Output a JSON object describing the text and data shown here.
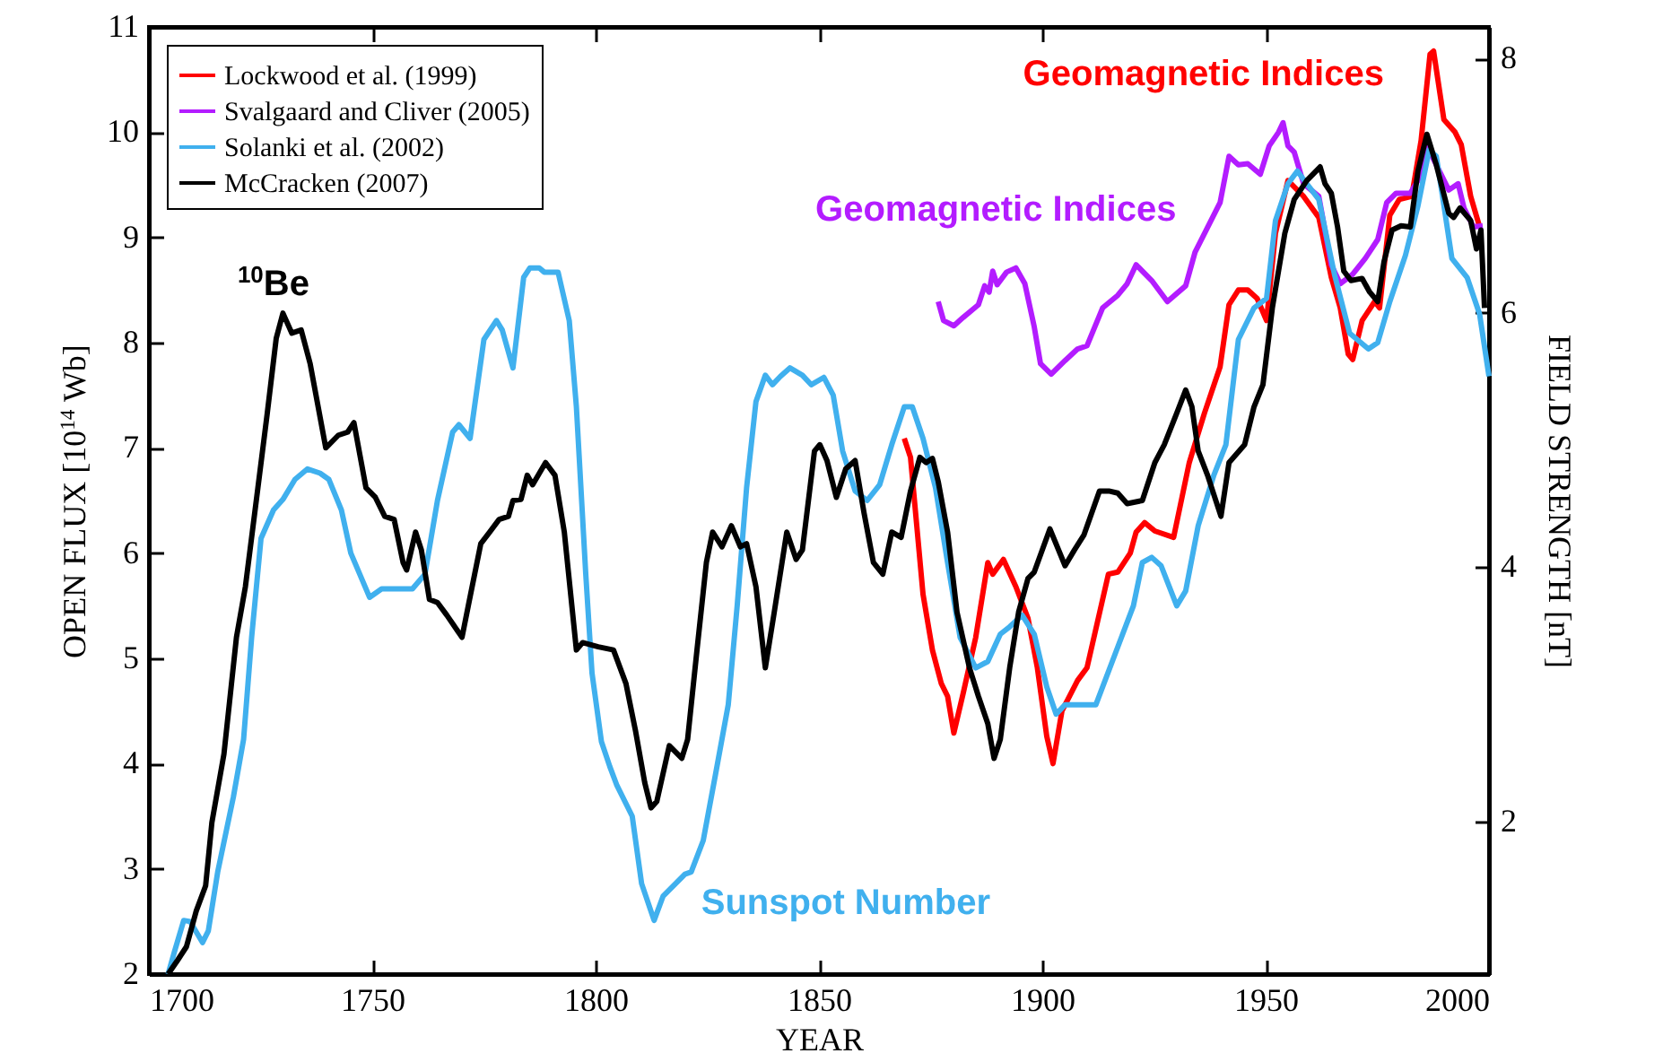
{
  "chart_data": {
    "type": "line",
    "xlabel": "YEAR",
    "ylabel": "OPEN FLUX [10$^{14}$ Wb]",
    "y2label": "FIELD STRENGTH [nT]",
    "xlim": [
      1700,
      2000
    ],
    "xticks": [
      1700,
      1750,
      1800,
      1850,
      1900,
      1950,
      2000
    ],
    "ylim": [
      2,
      11
    ],
    "yticks": [
      2,
      3,
      4,
      5,
      6,
      7,
      8,
      9,
      10,
      11
    ],
    "y2lim": [
      0.8,
      8.25
    ],
    "y2ticks": [
      2,
      4,
      6,
      8
    ],
    "legend": "top left",
    "line_style": "solid",
    "series": [
      {
        "name": "Lockwood et al. (1999)",
        "color": "#ff0000",
        "x": [
          1869.1,
          1870.5,
          1871.9,
          1873.3,
          1875.4,
          1877.4,
          1878.8,
          1880.2,
          1882.3,
          1885.1,
          1887.8,
          1888.9,
          1891.3,
          1894.1,
          1896.8,
          1898.9,
          1901.0,
          1902.4,
          1904.4,
          1907.9,
          1910.0,
          1914.8,
          1916.9,
          1919.7,
          1921.0,
          1922.9,
          1925.2,
          1929.4,
          1932.9,
          1936.3,
          1939.8,
          1941.8,
          1943.9,
          1946.0,
          1948.1,
          1950.2,
          1952.2,
          1955.0,
          1958.5,
          1961.9,
          1964.7,
          1966.7,
          1968.5,
          1969.5,
          1971.6,
          1974.4,
          1975.5,
          1977.8,
          1979.9,
          1982.7,
          1984.8,
          1986.8,
          1987.6,
          1989.9,
          1992.4,
          1993.8,
          1995.9,
          1997.9
        ],
        "values": [
          7.09,
          6.91,
          6.26,
          5.61,
          5.08,
          4.76,
          4.64,
          4.29,
          4.67,
          5.2,
          5.91,
          5.8,
          5.94,
          5.68,
          5.38,
          4.91,
          4.26,
          4.0,
          4.5,
          4.79,
          4.91,
          5.8,
          5.82,
          6.0,
          6.2,
          6.29,
          6.21,
          6.15,
          6.86,
          7.33,
          7.77,
          8.36,
          8.5,
          8.5,
          8.42,
          8.21,
          9.04,
          9.54,
          9.39,
          9.19,
          8.62,
          8.33,
          7.89,
          7.84,
          8.21,
          8.39,
          8.33,
          9.21,
          9.36,
          9.39,
          9.92,
          10.74,
          10.77,
          10.12,
          10.0,
          9.88,
          9.39,
          9.1
        ]
      },
      {
        "name": "Svalgaard and Cliver (2005)",
        "color": "#b31cff",
        "x": [
          1876.7,
          1877.9,
          1880.2,
          1882.3,
          1885.7,
          1887.1,
          1888.1,
          1888.9,
          1889.9,
          1892.0,
          1894.1,
          1896.1,
          1898.2,
          1899.6,
          1902.0,
          1905.1,
          1907.9,
          1910.0,
          1913.5,
          1916.9,
          1919.0,
          1921.0,
          1924.5,
          1928.0,
          1932.1,
          1934.2,
          1939.8,
          1941.8,
          1943.9,
          1946.0,
          1948.8,
          1950.8,
          1952.9,
          1953.9,
          1955.0,
          1956.4,
          1958.5,
          1961.9,
          1964.7,
          1966.7,
          1969.5,
          1972.3,
          1975.1,
          1977.1,
          1979.2,
          1982.4,
          1984.1,
          1986.1,
          1988.2,
          1991.0,
          1993.1,
          1994.4,
          1996.5,
          1998.6
        ],
        "values": [
          8.39,
          8.21,
          8.16,
          8.24,
          8.36,
          8.54,
          8.48,
          8.68,
          8.55,
          8.67,
          8.71,
          8.56,
          8.15,
          7.8,
          7.7,
          7.83,
          7.94,
          7.97,
          8.33,
          8.45,
          8.56,
          8.74,
          8.59,
          8.39,
          8.54,
          8.86,
          9.33,
          9.77,
          9.69,
          9.7,
          9.6,
          9.87,
          10.0,
          10.09,
          9.87,
          9.81,
          9.51,
          9.39,
          8.74,
          8.56,
          8.65,
          8.8,
          8.98,
          9.33,
          9.42,
          9.42,
          9.54,
          9.87,
          9.69,
          9.45,
          9.51,
          9.28,
          9.1,
          9.11
        ]
      },
      {
        "name": "Solanki et al. (2002)",
        "color": "#40b0ee",
        "x": [
          1704.3,
          1705.7,
          1707.8,
          1709.2,
          1710.6,
          1712.0,
          1713.3,
          1715.4,
          1718.9,
          1721.2,
          1723.0,
          1725.1,
          1727.9,
          1730.0,
          1732.7,
          1735.5,
          1738.3,
          1740.3,
          1743.1,
          1745.2,
          1749.4,
          1752.1,
          1759.0,
          1761.8,
          1764.6,
          1768.0,
          1769.4,
          1771.9,
          1775.0,
          1777.8,
          1779.1,
          1781.5,
          1783.9,
          1785.3,
          1787.4,
          1788.5,
          1791.6,
          1794.1,
          1795.7,
          1797.8,
          1799.2,
          1801.3,
          1803.2,
          1804.7,
          1808.2,
          1810.3,
          1813.1,
          1815.1,
          1820.0,
          1821.4,
          1824.1,
          1826.9,
          1829.7,
          1831.7,
          1833.8,
          1835.9,
          1838.0,
          1839.6,
          1841.4,
          1843.5,
          1846.3,
          1848.3,
          1851.1,
          1853.2,
          1855.3,
          1858.1,
          1860.8,
          1863.6,
          1866.3,
          1869.1,
          1870.9,
          1873.3,
          1876.1,
          1878.8,
          1881.6,
          1885.1,
          1887.8,
          1890.6,
          1892.7,
          1895.5,
          1898.2,
          1901.0,
          1903.1,
          1905.1,
          1912.0,
          1916.2,
          1920.4,
          1922.4,
          1924.5,
          1926.6,
          1930.1,
          1932.1,
          1934.9,
          1938.4,
          1941.1,
          1943.9,
          1947.4,
          1950.2,
          1952.2,
          1955.0,
          1957.1,
          1959.2,
          1961.9,
          1965.4,
          1968.8,
          1973.0,
          1975.1,
          1977.8,
          1981.3,
          1984.1,
          1986.6,
          1988.2,
          1989.6,
          1991.7,
          1995.1,
          1997.9,
          2000.0
        ],
        "values": [
          2.0,
          2.21,
          2.51,
          2.5,
          2.4,
          2.3,
          2.41,
          2.97,
          3.68,
          4.23,
          5.2,
          6.14,
          6.41,
          6.51,
          6.7,
          6.8,
          6.76,
          6.7,
          6.41,
          6.0,
          5.58,
          5.66,
          5.66,
          5.8,
          6.5,
          7.15,
          7.22,
          7.09,
          8.03,
          8.21,
          8.12,
          7.76,
          8.62,
          8.71,
          8.71,
          8.67,
          8.67,
          8.21,
          7.39,
          5.8,
          4.86,
          4.21,
          3.97,
          3.8,
          3.5,
          2.86,
          2.51,
          2.74,
          2.95,
          2.97,
          3.27,
          3.91,
          4.56,
          5.5,
          6.62,
          7.44,
          7.69,
          7.6,
          7.68,
          7.76,
          7.69,
          7.6,
          7.67,
          7.5,
          6.97,
          6.59,
          6.5,
          6.65,
          7.03,
          7.39,
          7.39,
          7.09,
          6.62,
          5.91,
          5.2,
          4.91,
          4.97,
          5.23,
          5.3,
          5.41,
          5.23,
          4.73,
          4.47,
          4.56,
          4.56,
          5.03,
          5.5,
          5.91,
          5.96,
          5.88,
          5.5,
          5.64,
          6.26,
          6.74,
          7.03,
          8.03,
          8.33,
          8.42,
          9.16,
          9.51,
          9.63,
          9.51,
          9.36,
          8.65,
          8.09,
          7.94,
          8.0,
          8.39,
          8.83,
          9.3,
          9.83,
          9.77,
          9.39,
          8.8,
          8.62,
          8.27,
          7.68
        ]
      },
      {
        "name": "McCracken (2007)",
        "color": "#000000",
        "x": [
          1704.3,
          1706.4,
          1708.4,
          1710.6,
          1712.7,
          1714.1,
          1716.8,
          1719.6,
          1721.6,
          1724.4,
          1726.5,
          1728.5,
          1730.0,
          1732.0,
          1734.1,
          1736.1,
          1739.6,
          1742.4,
          1744.5,
          1745.9,
          1748.6,
          1750.7,
          1752.8,
          1754.9,
          1756.9,
          1757.7,
          1759.7,
          1761.0,
          1762.8,
          1764.6,
          1766.7,
          1770.1,
          1771.5,
          1774.3,
          1776.3,
          1778.4,
          1780.5,
          1781.5,
          1783.3,
          1784.7,
          1785.9,
          1788.8,
          1790.9,
          1793.0,
          1795.7,
          1797.1,
          1800.6,
          1804.0,
          1806.8,
          1808.9,
          1811.0,
          1812.4,
          1813.7,
          1816.5,
          1819.3,
          1820.6,
          1822.7,
          1824.8,
          1826.2,
          1828.3,
          1830.4,
          1832.4,
          1833.8,
          1835.9,
          1838.0,
          1840.0,
          1842.8,
          1844.9,
          1846.3,
          1849.0,
          1850.2,
          1851.8,
          1853.9,
          1856.0,
          1858.1,
          1860.1,
          1862.2,
          1864.3,
          1866.3,
          1868.4,
          1870.5,
          1872.6,
          1874.0,
          1875.4,
          1876.7,
          1878.8,
          1880.9,
          1883.7,
          1885.7,
          1887.8,
          1889.2,
          1890.6,
          1892.7,
          1894.7,
          1896.8,
          1898.2,
          1901.7,
          1905.1,
          1907.2,
          1909.3,
          1912.8,
          1914.9,
          1916.9,
          1919.0,
          1922.4,
          1925.2,
          1927.3,
          1930.1,
          1932.1,
          1933.5,
          1934.9,
          1937.0,
          1940.0,
          1941.8,
          1945.3,
          1947.4,
          1949.4,
          1951.5,
          1954.3,
          1956.4,
          1959.2,
          1962.2,
          1963.3,
          1964.7,
          1966.1,
          1967.5,
          1969.1,
          1971.6,
          1973.3,
          1975.1,
          1976.5,
          1978.3,
          1980.3,
          1982.4,
          1984.1,
          1986.1,
          1988.2,
          1991.0,
          1992.1,
          1993.5,
          1995.9,
          1997.2,
          1998.2,
          1999.0
        ],
        "values": [
          2.0,
          2.13,
          2.26,
          2.6,
          2.84,
          3.44,
          4.09,
          5.2,
          5.68,
          6.62,
          7.33,
          8.04,
          8.28,
          8.09,
          8.12,
          7.8,
          7.0,
          7.12,
          7.15,
          7.24,
          6.62,
          6.53,
          6.35,
          6.32,
          5.91,
          5.84,
          6.2,
          6.03,
          5.56,
          5.53,
          5.41,
          5.2,
          5.5,
          6.09,
          6.2,
          6.32,
          6.35,
          6.5,
          6.51,
          6.74,
          6.65,
          6.86,
          6.74,
          6.2,
          5.08,
          5.15,
          5.11,
          5.08,
          4.76,
          4.32,
          3.82,
          3.58,
          3.64,
          4.17,
          4.05,
          4.23,
          5.08,
          5.91,
          6.2,
          6.06,
          6.26,
          6.06,
          6.09,
          5.68,
          4.91,
          5.44,
          6.2,
          5.94,
          6.03,
          6.97,
          7.03,
          6.88,
          6.53,
          6.8,
          6.88,
          6.38,
          5.91,
          5.8,
          6.2,
          6.15,
          6.59,
          6.91,
          6.86,
          6.9,
          6.68,
          6.2,
          5.44,
          4.91,
          4.64,
          4.38,
          4.05,
          4.23,
          4.91,
          5.44,
          5.76,
          5.82,
          6.23,
          5.88,
          6.03,
          6.17,
          6.59,
          6.59,
          6.57,
          6.47,
          6.5,
          6.86,
          7.03,
          7.33,
          7.55,
          7.39,
          6.97,
          6.74,
          6.35,
          6.86,
          7.03,
          7.39,
          7.6,
          8.33,
          9.04,
          9.36,
          9.54,
          9.67,
          9.51,
          9.42,
          9.1,
          8.68,
          8.59,
          8.61,
          8.48,
          8.39,
          8.77,
          9.07,
          9.11,
          9.1,
          9.63,
          9.98,
          9.69,
          9.23,
          9.19,
          9.28,
          9.16,
          8.89,
          9.07,
          8.33
        ]
      }
    ],
    "annotations": [
      "$^{10}$Be",
      "Sunspot Number",
      "Geomagnetic Indices",
      "Geomagnetic Indices"
    ]
  }
}
